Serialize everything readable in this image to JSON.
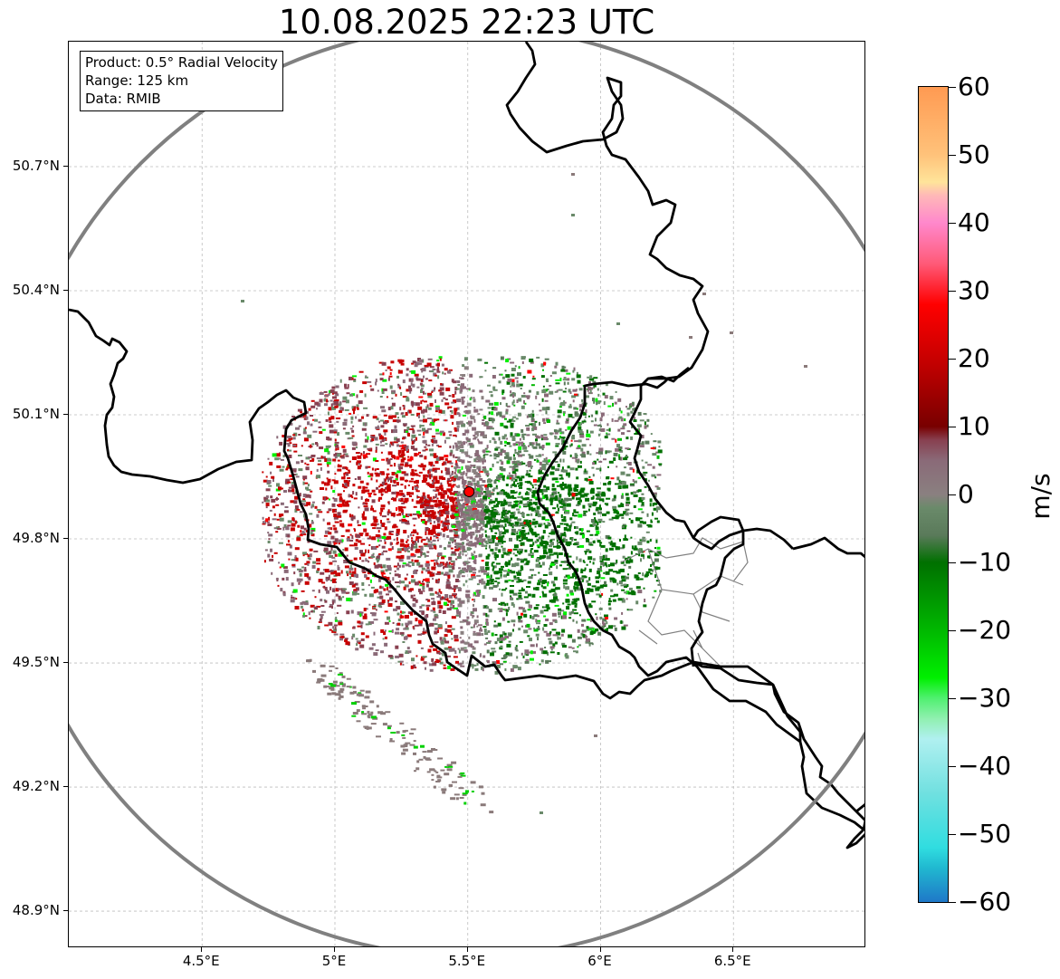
{
  "title": "10.08.2025 22:23 UTC",
  "info_box": {
    "product": "Product: 0.5° Radial Velocity",
    "range": "Range: 125 km",
    "data": "Data: RMIB"
  },
  "map": {
    "lon_range": [
      4.0,
      7.0
    ],
    "lat_range": [
      48.8,
      50.98
    ],
    "lon_ticks": [
      {
        "value": 4.5,
        "label": "4.5°E"
      },
      {
        "value": 5.0,
        "label": "5°E"
      },
      {
        "value": 5.5,
        "label": "5.5°E"
      },
      {
        "value": 6.0,
        "label": "6°E"
      },
      {
        "value": 6.5,
        "label": "6.5°E"
      }
    ],
    "lat_ticks": [
      {
        "value": 50.7,
        "label": "50.7°N"
      },
      {
        "value": 50.4,
        "label": "50.4°N"
      },
      {
        "value": 50.1,
        "label": "50.1°N"
      },
      {
        "value": 49.8,
        "label": "49.8°N"
      },
      {
        "value": 49.5,
        "label": "49.5°N"
      },
      {
        "value": 49.2,
        "label": "49.2°N"
      },
      {
        "value": 48.9,
        "label": "48.9°N"
      }
    ],
    "radar_site": {
      "lon": 5.505,
      "lat": 49.914
    },
    "range_km": 125,
    "colors": {
      "range_ring": "#808080",
      "border": "#000000",
      "admin_border": "#808080",
      "site_marker": "#ff0000"
    }
  },
  "colorbar": {
    "label": "m/s",
    "min": -60,
    "max": 60,
    "ticks": [
      {
        "value": 60,
        "label": "60"
      },
      {
        "value": 50,
        "label": "50"
      },
      {
        "value": 40,
        "label": "40"
      },
      {
        "value": 30,
        "label": "30"
      },
      {
        "value": 20,
        "label": "20"
      },
      {
        "value": 10,
        "label": "10"
      },
      {
        "value": 0,
        "label": "0"
      },
      {
        "value": -10,
        "label": "−10"
      },
      {
        "value": -20,
        "label": "−20"
      },
      {
        "value": -30,
        "label": "−30"
      },
      {
        "value": -40,
        "label": "−40"
      },
      {
        "value": -50,
        "label": "−50"
      },
      {
        "value": -60,
        "label": "−60"
      }
    ],
    "stops": [
      {
        "value": 60,
        "color": "#ff9a52"
      },
      {
        "value": 50,
        "color": "#ffc27a"
      },
      {
        "value": 46,
        "color": "#ffe49a"
      },
      {
        "value": 44,
        "color": "#ffb8b8"
      },
      {
        "value": 40,
        "color": "#ff88cc"
      },
      {
        "value": 34,
        "color": "#ff5a78"
      },
      {
        "value": 28,
        "color": "#ff0000"
      },
      {
        "value": 20,
        "color": "#c80000"
      },
      {
        "value": 10,
        "color": "#780000"
      },
      {
        "value": 8,
        "color": "#884050"
      },
      {
        "value": 5,
        "color": "#8a6a78"
      },
      {
        "value": 0,
        "color": "#8a8080"
      },
      {
        "value": -2,
        "color": "#6a8a6a"
      },
      {
        "value": -6,
        "color": "#5a7a5a"
      },
      {
        "value": -10,
        "color": "#007000"
      },
      {
        "value": -20,
        "color": "#00b800"
      },
      {
        "value": -27,
        "color": "#00f000"
      },
      {
        "value": -30,
        "color": "#50f070"
      },
      {
        "value": -33,
        "color": "#90f0b0"
      },
      {
        "value": -36,
        "color": "#b0f0f0"
      },
      {
        "value": -44,
        "color": "#70e0e0"
      },
      {
        "value": -52,
        "color": "#30dde0"
      },
      {
        "value": -55,
        "color": "#20b8d0"
      },
      {
        "value": -60,
        "color": "#1f78c8"
      }
    ]
  }
}
